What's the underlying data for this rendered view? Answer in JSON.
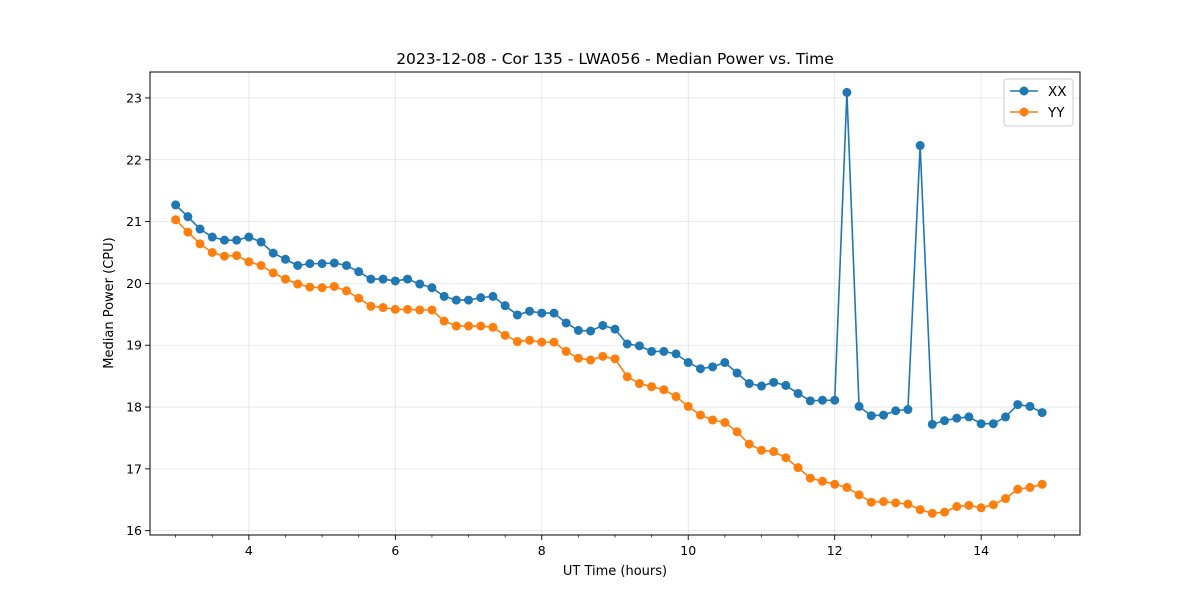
{
  "chart_data": {
    "type": "line",
    "title": "2023-12-08 - Cor 135 - LWA056 - Median Power vs. Time",
    "xlabel": "UT Time (hours)",
    "ylabel": "Median Power (CPU)",
    "xlim": [
      2.65,
      15.35
    ],
    "ylim": [
      15.93,
      23.42
    ],
    "xticks": [
      4,
      6,
      8,
      10,
      12,
      14
    ],
    "xtick_labels": [
      "4",
      "6",
      "8",
      "10",
      "12",
      "14"
    ],
    "yticks": [
      16,
      17,
      18,
      19,
      20,
      21,
      22,
      23
    ],
    "ytick_labels": [
      "16",
      "17",
      "18",
      "19",
      "20",
      "21",
      "22",
      "23"
    ],
    "grid": true,
    "legend_position": "top-right",
    "x": [
      3.0,
      3.167,
      3.333,
      3.5,
      3.667,
      3.833,
      4.0,
      4.167,
      4.333,
      4.5,
      4.667,
      4.833,
      5.0,
      5.167,
      5.333,
      5.5,
      5.667,
      5.833,
      6.0,
      6.167,
      6.333,
      6.5,
      6.667,
      6.833,
      7.0,
      7.167,
      7.333,
      7.5,
      7.667,
      7.833,
      8.0,
      8.167,
      8.333,
      8.5,
      8.667,
      8.833,
      9.0,
      9.167,
      9.333,
      9.5,
      9.667,
      9.833,
      10.0,
      10.167,
      10.333,
      10.5,
      10.667,
      10.833,
      11.0,
      11.167,
      11.333,
      11.5,
      11.667,
      11.833,
      12.0,
      12.167,
      12.333,
      12.5,
      12.667,
      12.833,
      13.0,
      13.167,
      13.333,
      13.5,
      13.667,
      13.833,
      14.0,
      14.167,
      14.333,
      14.5,
      14.667,
      14.833
    ],
    "series": [
      {
        "name": "XX",
        "color": "#1f77b4",
        "values": [
          21.27,
          21.08,
          20.88,
          20.75,
          20.7,
          20.7,
          20.75,
          20.67,
          20.49,
          20.39,
          20.29,
          20.32,
          20.32,
          20.33,
          20.29,
          20.19,
          20.07,
          20.07,
          20.04,
          20.07,
          19.99,
          19.93,
          19.79,
          19.73,
          19.73,
          19.77,
          19.79,
          19.64,
          19.49,
          19.55,
          19.52,
          19.52,
          19.36,
          19.24,
          19.23,
          19.32,
          19.26,
          19.02,
          18.99,
          18.9,
          18.9,
          18.86,
          18.72,
          18.62,
          18.65,
          18.72,
          18.55,
          18.38,
          18.34,
          18.4,
          18.35,
          18.22,
          18.1,
          18.11,
          18.11,
          23.09,
          18.01,
          17.86,
          17.87,
          17.94,
          17.96,
          22.23,
          17.72,
          17.78,
          17.82,
          17.84,
          17.73,
          17.73,
          17.84,
          18.04,
          18.01,
          17.91
        ]
      },
      {
        "name": "YY",
        "color": "#ff7f0e",
        "values": [
          21.03,
          20.83,
          20.64,
          20.5,
          20.44,
          20.45,
          20.35,
          20.29,
          20.17,
          20.07,
          19.99,
          19.94,
          19.93,
          19.95,
          19.88,
          19.76,
          19.63,
          19.61,
          19.58,
          19.58,
          19.57,
          19.57,
          19.39,
          19.31,
          19.31,
          19.31,
          19.29,
          19.16,
          19.06,
          19.08,
          19.05,
          19.05,
          18.9,
          18.79,
          18.76,
          18.82,
          18.78,
          18.49,
          18.38,
          18.33,
          18.28,
          18.17,
          18.01,
          17.87,
          17.79,
          17.75,
          17.6,
          17.4,
          17.3,
          17.28,
          17.18,
          17.02,
          16.85,
          16.8,
          16.75,
          16.7,
          16.58,
          16.46,
          16.47,
          16.45,
          16.43,
          16.34,
          16.28,
          16.3,
          16.39,
          16.41,
          16.37,
          16.42,
          16.52,
          16.67,
          16.7,
          16.75
        ]
      }
    ]
  }
}
